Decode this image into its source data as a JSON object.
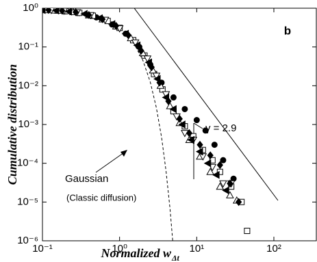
{
  "chart_data": {
    "type": "scatter",
    "panel_label": "b",
    "x_label": "Normalized w",
    "x_label_sub": "Δt",
    "y_label": "Cumulative distribution",
    "log_x": true,
    "log_y": true,
    "xlim": [
      0.1,
      355
    ],
    "ylim": [
      1e-06,
      1
    ],
    "xticks": [
      {
        "value": 0.1,
        "label": "10⁻¹"
      },
      {
        "value": 1,
        "label": "10⁰"
      },
      {
        "value": 10,
        "label": "10¹"
      },
      {
        "value": 100,
        "label": "10²"
      }
    ],
    "yticks": [
      {
        "value": 1,
        "label": "10⁰"
      },
      {
        "value": 0.1,
        "label": "10⁻¹"
      },
      {
        "value": 0.01,
        "label": "10⁻²"
      },
      {
        "value": 0.001,
        "label": "10⁻³"
      },
      {
        "value": 0.0001,
        "label": "10⁻⁴"
      },
      {
        "value": 1e-05,
        "label": "10⁻⁵"
      },
      {
        "value": 1e-06,
        "label": "10⁻⁶"
      }
    ],
    "series": [
      {
        "marker": "circle-filled",
        "color": "#000000",
        "x": [
          0.1,
          0.12,
          0.15,
          0.2,
          0.3,
          0.5,
          0.8,
          1.2,
          1.8,
          2.5,
          3.5,
          5,
          7,
          10,
          13,
          17,
          22,
          30
        ],
        "values": [
          0.9,
          0.89,
          0.87,
          0.83,
          0.75,
          0.58,
          0.38,
          0.22,
          0.1,
          0.035,
          0.012,
          0.005,
          0.0025,
          0.0013,
          0.0007,
          0.0003,
          0.00012,
          4e-05
        ]
      },
      {
        "marker": "square-open",
        "color": "#000000",
        "x": [
          0.1,
          0.14,
          0.2,
          0.3,
          0.45,
          0.7,
          1,
          1.5,
          2.1,
          2.8,
          3.6,
          5,
          7,
          9,
          12,
          16,
          20,
          28,
          38,
          45
        ],
        "values": [
          0.9,
          0.88,
          0.84,
          0.76,
          0.64,
          0.47,
          0.31,
          0.15,
          0.06,
          0.02,
          0.008,
          0.0022,
          0.0009,
          0.0005,
          0.00022,
          0.00012,
          6e-05,
          2.5e-05,
          1e-05,
          1.8e-06
        ]
      },
      {
        "marker": "triangle-up-open",
        "color": "#000000",
        "x": [
          0.11,
          0.16,
          0.25,
          0.4,
          0.6,
          0.9,
          1.4,
          2,
          2.7,
          3.4,
          4.5,
          6,
          8,
          11,
          15,
          20,
          27,
          33
        ],
        "values": [
          0.9,
          0.87,
          0.8,
          0.66,
          0.52,
          0.34,
          0.17,
          0.07,
          0.025,
          0.01,
          0.003,
          0.0011,
          0.0004,
          0.00015,
          6e-05,
          2.5e-05,
          1.5e-05,
          1.1e-05
        ]
      },
      {
        "marker": "triangle-down-open",
        "color": "#000000",
        "x": [
          0.13,
          0.19,
          0.28,
          0.42,
          0.65,
          1,
          1.6,
          2.3,
          3,
          4,
          5.5,
          7,
          9,
          12,
          16,
          22,
          28
        ],
        "values": [
          0.89,
          0.85,
          0.78,
          0.66,
          0.5,
          0.3,
          0.13,
          0.05,
          0.018,
          0.006,
          0.0016,
          0.0006,
          0.0004,
          0.00015,
          8e-05,
          3e-05,
          3e-05
        ]
      },
      {
        "marker": "diamond-filled",
        "color": "#000000",
        "x": [
          0.12,
          0.18,
          0.27,
          0.4,
          0.6,
          0.9,
          1.3,
          1.9,
          2.6,
          3.3,
          4.3,
          6,
          8,
          11,
          15,
          20,
          27,
          35
        ],
        "values": [
          0.9,
          0.86,
          0.79,
          0.67,
          0.52,
          0.35,
          0.2,
          0.08,
          0.03,
          0.012,
          0.004,
          0.0014,
          0.0006,
          0.0003,
          0.00016,
          9e-05,
          3e-05,
          1e-05
        ]
      },
      {
        "marker": "triangle-left-filled",
        "color": "#000000",
        "x": [
          0.1,
          0.15,
          0.22,
          0.35,
          0.55,
          0.8,
          1.2,
          1.7,
          2.4,
          3.1,
          4,
          5,
          6.5,
          8.5,
          11,
          14,
          18,
          24
        ],
        "values": [
          0.9,
          0.87,
          0.82,
          0.71,
          0.55,
          0.39,
          0.22,
          0.11,
          0.04,
          0.015,
          0.005,
          0.0025,
          0.001,
          0.0004,
          0.0002,
          0.0001,
          5e-05,
          2e-05
        ]
      }
    ],
    "gaussian": {
      "x": [
        1.5,
        2,
        2.5,
        3,
        3.5,
        4,
        4.5,
        5
      ],
      "values": [
        0.134,
        0.0455,
        0.0124,
        0.0027,
        0.000465,
        6.3e-05,
        6.8e-06,
        5.7e-07
      ]
    },
    "power_law": {
      "x": [
        1.55,
        113
      ],
      "values": [
        1,
        1.1e-05
      ]
    },
    "annotations": {
      "gamma": "γ = 2.9",
      "gaussian": "Gaussian",
      "classic": "(Classic diffusion)"
    }
  }
}
